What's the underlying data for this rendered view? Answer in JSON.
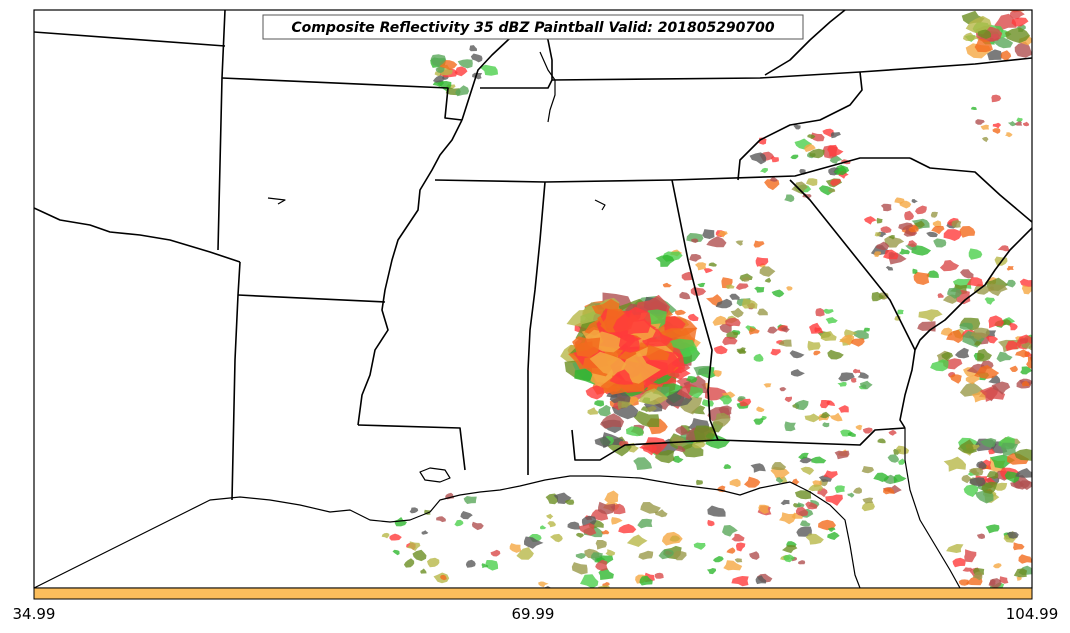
{
  "title": "Composite Reflectivity 35 dBZ Paintball Valid: 201805290700",
  "colorbar": {
    "color": "#fcbe5c",
    "tick_labels": [
      "34.99",
      "69.99",
      "104.99"
    ]
  },
  "paintball_colors": [
    "#ff3b3b",
    "#f26b1d",
    "#f5a742",
    "#b05050",
    "#9a9a4a",
    "#b8b848",
    "#4ccf4c",
    "#5aa85a",
    "#2fb82f",
    "#5a5a5a",
    "#6b8e23",
    "#d94a4a"
  ],
  "map": {
    "land_color": "#ffffff",
    "boundary_color": "#000000"
  }
}
